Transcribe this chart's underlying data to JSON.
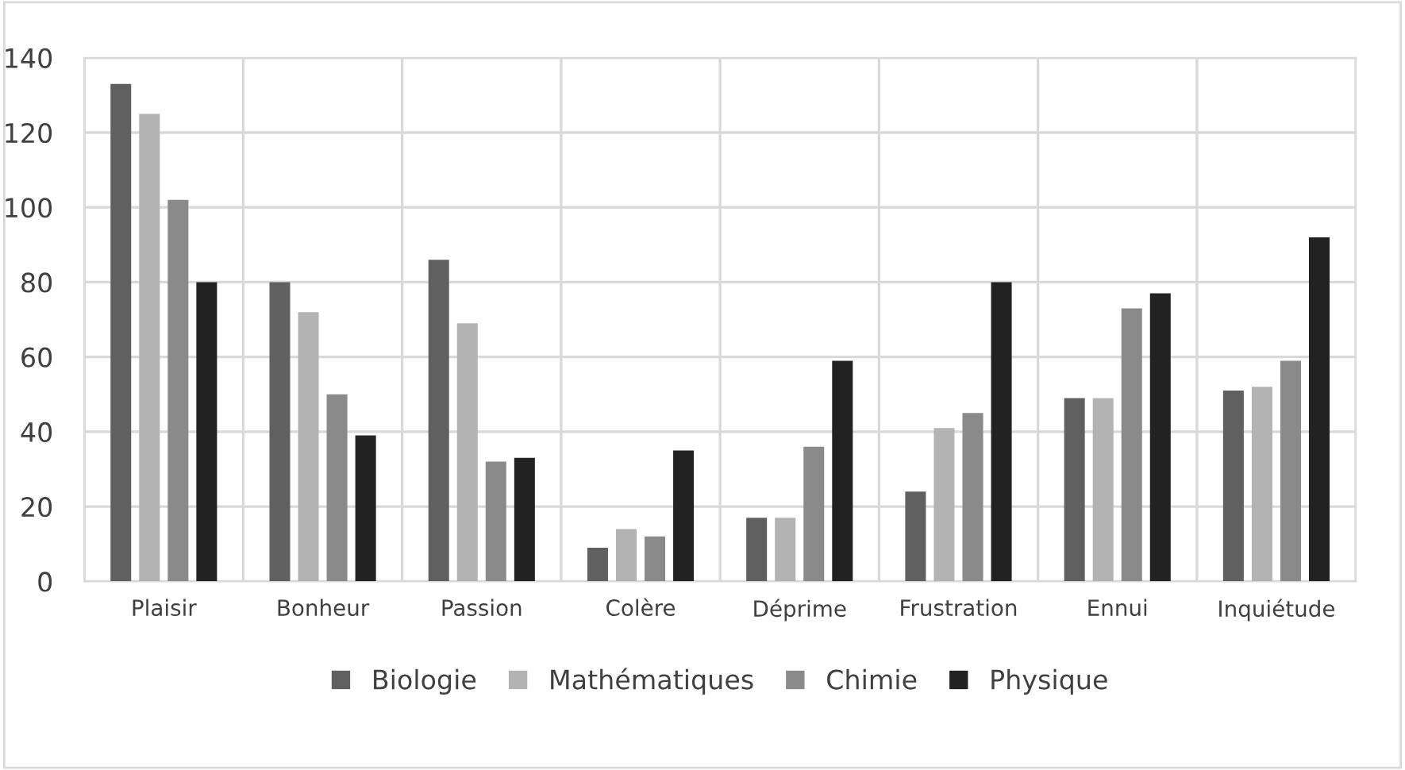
{
  "chart_data": {
    "type": "bar",
    "categories": [
      "Plaisir",
      "Bonheur",
      "Passion",
      "Colère",
      "Déprime",
      "Frustration",
      "Ennui",
      "Inquiétude"
    ],
    "series": [
      {
        "name": "Biologie",
        "color": "#606060",
        "values": [
          133,
          80,
          86,
          9,
          17,
          24,
          49,
          51
        ]
      },
      {
        "name": "Mathématiques",
        "color": "#b3b3b3",
        "values": [
          125,
          72,
          69,
          14,
          17,
          41,
          49,
          52
        ]
      },
      {
        "name": "Chimie",
        "color": "#8a8a8a",
        "values": [
          102,
          50,
          32,
          12,
          36,
          45,
          73,
          59
        ]
      },
      {
        "name": "Physique",
        "color": "#222222",
        "values": [
          80,
          39,
          33,
          35,
          59,
          80,
          77,
          92
        ]
      }
    ],
    "ylim": [
      0,
      140
    ],
    "yticks": [
      0,
      20,
      40,
      60,
      80,
      100,
      120,
      140
    ],
    "grid": true,
    "legend": "bottom"
  }
}
